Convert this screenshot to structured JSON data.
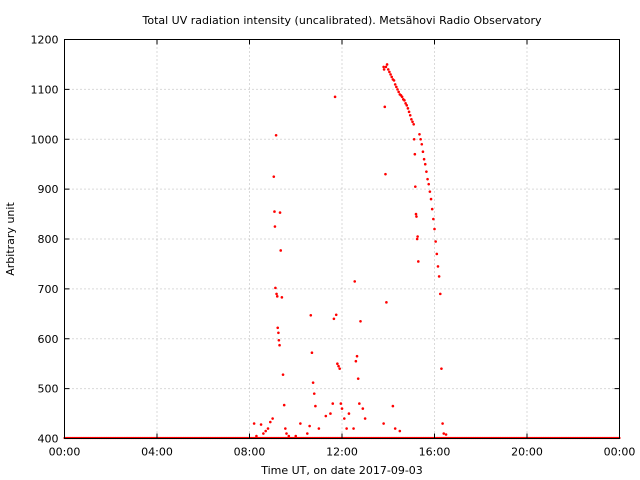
{
  "chart_data": {
    "type": "scatter",
    "title": "Total UV radiation intensity (uncalibrated). Metsähovi Radio Observatory",
    "xlabel": "Time UT, on date 2017-09-03",
    "ylabel": "Arbitrary unit",
    "xlim": [
      "00:00",
      "24:00"
    ],
    "ylim": [
      400,
      1200
    ],
    "x_ticks": [
      "00:00",
      "04:00",
      "08:00",
      "12:00",
      "16:00",
      "20:00",
      "00:00"
    ],
    "y_ticks": [
      "400",
      "500",
      "600",
      "700",
      "800",
      "900",
      "1000",
      "1100",
      "1200"
    ],
    "grid": true,
    "marker_color": "#ff0000",
    "series": [
      {
        "x_unit": "hours UT",
        "points": [
          [
            8.2,
            430
          ],
          [
            8.3,
            405
          ],
          [
            8.5,
            428
          ],
          [
            8.6,
            410
          ],
          [
            8.7,
            415
          ],
          [
            8.8,
            420
          ],
          [
            8.9,
            433
          ],
          [
            9.0,
            440
          ],
          [
            9.05,
            925
          ],
          [
            9.08,
            855
          ],
          [
            9.1,
            825
          ],
          [
            9.12,
            702
          ],
          [
            9.15,
            1008
          ],
          [
            9.17,
            690
          ],
          [
            9.2,
            685
          ],
          [
            9.22,
            622
          ],
          [
            9.25,
            612
          ],
          [
            9.27,
            597
          ],
          [
            9.3,
            587
          ],
          [
            9.32,
            853
          ],
          [
            9.35,
            777
          ],
          [
            9.4,
            683
          ],
          [
            9.45,
            528
          ],
          [
            9.5,
            467
          ],
          [
            9.55,
            420
          ],
          [
            9.6,
            410
          ],
          [
            9.7,
            405
          ],
          [
            10.0,
            405
          ],
          [
            10.2,
            430
          ],
          [
            10.5,
            410
          ],
          [
            10.6,
            425
          ],
          [
            10.65,
            647
          ],
          [
            10.7,
            572
          ],
          [
            10.75,
            512
          ],
          [
            10.8,
            490
          ],
          [
            10.85,
            465
          ],
          [
            11.0,
            420
          ],
          [
            11.3,
            445
          ],
          [
            11.5,
            450
          ],
          [
            11.6,
            470
          ],
          [
            11.65,
            640
          ],
          [
            11.7,
            1085
          ],
          [
            11.75,
            648
          ],
          [
            11.8,
            550
          ],
          [
            11.85,
            545
          ],
          [
            11.9,
            540
          ],
          [
            11.95,
            470
          ],
          [
            12.0,
            460
          ],
          [
            12.1,
            440
          ],
          [
            12.2,
            420
          ],
          [
            12.3,
            450
          ],
          [
            12.5,
            420
          ],
          [
            12.55,
            715
          ],
          [
            12.6,
            555
          ],
          [
            12.65,
            565
          ],
          [
            12.7,
            520
          ],
          [
            12.75,
            470
          ],
          [
            12.8,
            635
          ],
          [
            12.9,
            460
          ],
          [
            13.0,
            440
          ],
          [
            13.8,
            430
          ],
          [
            13.8,
            1145
          ],
          [
            13.82,
            1140
          ],
          [
            13.85,
            1065
          ],
          [
            13.88,
            930
          ],
          [
            13.9,
            1145
          ],
          [
            13.92,
            673
          ],
          [
            13.95,
            1150
          ],
          [
            14.0,
            1140
          ],
          [
            14.05,
            1135
          ],
          [
            14.1,
            1130
          ],
          [
            14.15,
            1125
          ],
          [
            14.2,
            1120
          ],
          [
            14.25,
            1118
          ],
          [
            14.3,
            1110
          ],
          [
            14.35,
            1105
          ],
          [
            14.4,
            1100
          ],
          [
            14.45,
            1095
          ],
          [
            14.5,
            1090
          ],
          [
            14.55,
            1088
          ],
          [
            14.6,
            1085
          ],
          [
            14.65,
            1080
          ],
          [
            14.7,
            1078
          ],
          [
            14.75,
            1072
          ],
          [
            14.8,
            1068
          ],
          [
            14.85,
            1062
          ],
          [
            14.9,
            1055
          ],
          [
            14.95,
            1048
          ],
          [
            15.0,
            1040
          ],
          [
            15.05,
            1035
          ],
          [
            15.1,
            1030
          ],
          [
            15.12,
            1000
          ],
          [
            15.15,
            970
          ],
          [
            15.17,
            905
          ],
          [
            15.2,
            850
          ],
          [
            15.22,
            845
          ],
          [
            15.25,
            800
          ],
          [
            15.27,
            805
          ],
          [
            15.3,
            755
          ],
          [
            15.35,
            1010
          ],
          [
            15.4,
            1000
          ],
          [
            15.45,
            990
          ],
          [
            15.5,
            975
          ],
          [
            15.55,
            960
          ],
          [
            15.6,
            950
          ],
          [
            15.65,
            935
          ],
          [
            15.7,
            920
          ],
          [
            15.75,
            910
          ],
          [
            15.8,
            895
          ],
          [
            15.85,
            880
          ],
          [
            15.9,
            860
          ],
          [
            15.95,
            840
          ],
          [
            16.0,
            820
          ],
          [
            16.05,
            795
          ],
          [
            16.1,
            770
          ],
          [
            16.15,
            745
          ],
          [
            16.2,
            725
          ],
          [
            16.25,
            690
          ],
          [
            16.3,
            540
          ],
          [
            16.35,
            430
          ],
          [
            16.4,
            410
          ],
          [
            16.5,
            408
          ],
          [
            14.2,
            465
          ],
          [
            14.3,
            420
          ],
          [
            14.5,
            415
          ]
        ]
      }
    ]
  }
}
